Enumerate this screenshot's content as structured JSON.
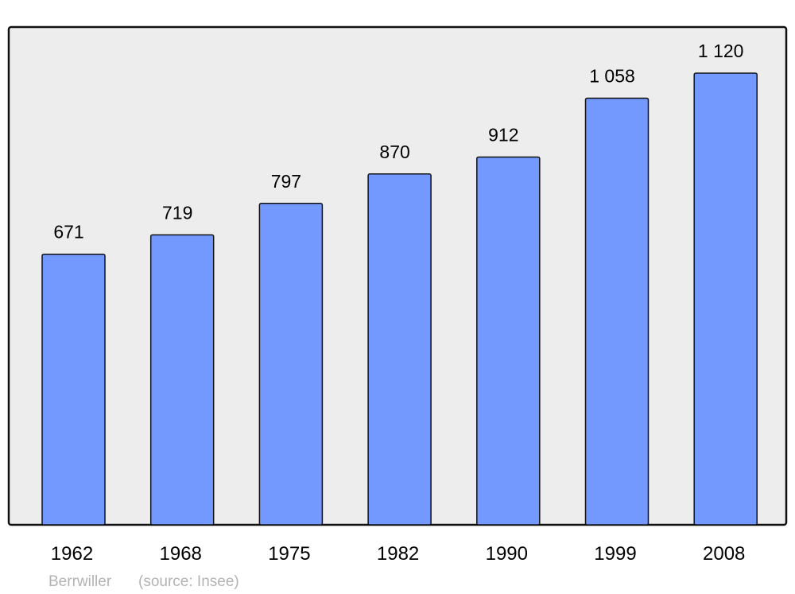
{
  "chart_data": {
    "type": "bar",
    "categories": [
      "1962",
      "1968",
      "1975",
      "1982",
      "1990",
      "1999",
      "2008"
    ],
    "values": [
      671,
      719,
      797,
      870,
      912,
      1058,
      1120
    ],
    "value_labels": [
      "671",
      "719",
      "797",
      "870",
      "912",
      "1 058",
      "1 120"
    ],
    "title": "",
    "xlabel": "",
    "ylabel": "",
    "ylim": [
      0,
      1120
    ],
    "grid": false,
    "bar_color": "#7399ff",
    "background_color": "#ededed"
  },
  "footer": {
    "place": "Berrwiller",
    "source": "(source: Insee)"
  }
}
